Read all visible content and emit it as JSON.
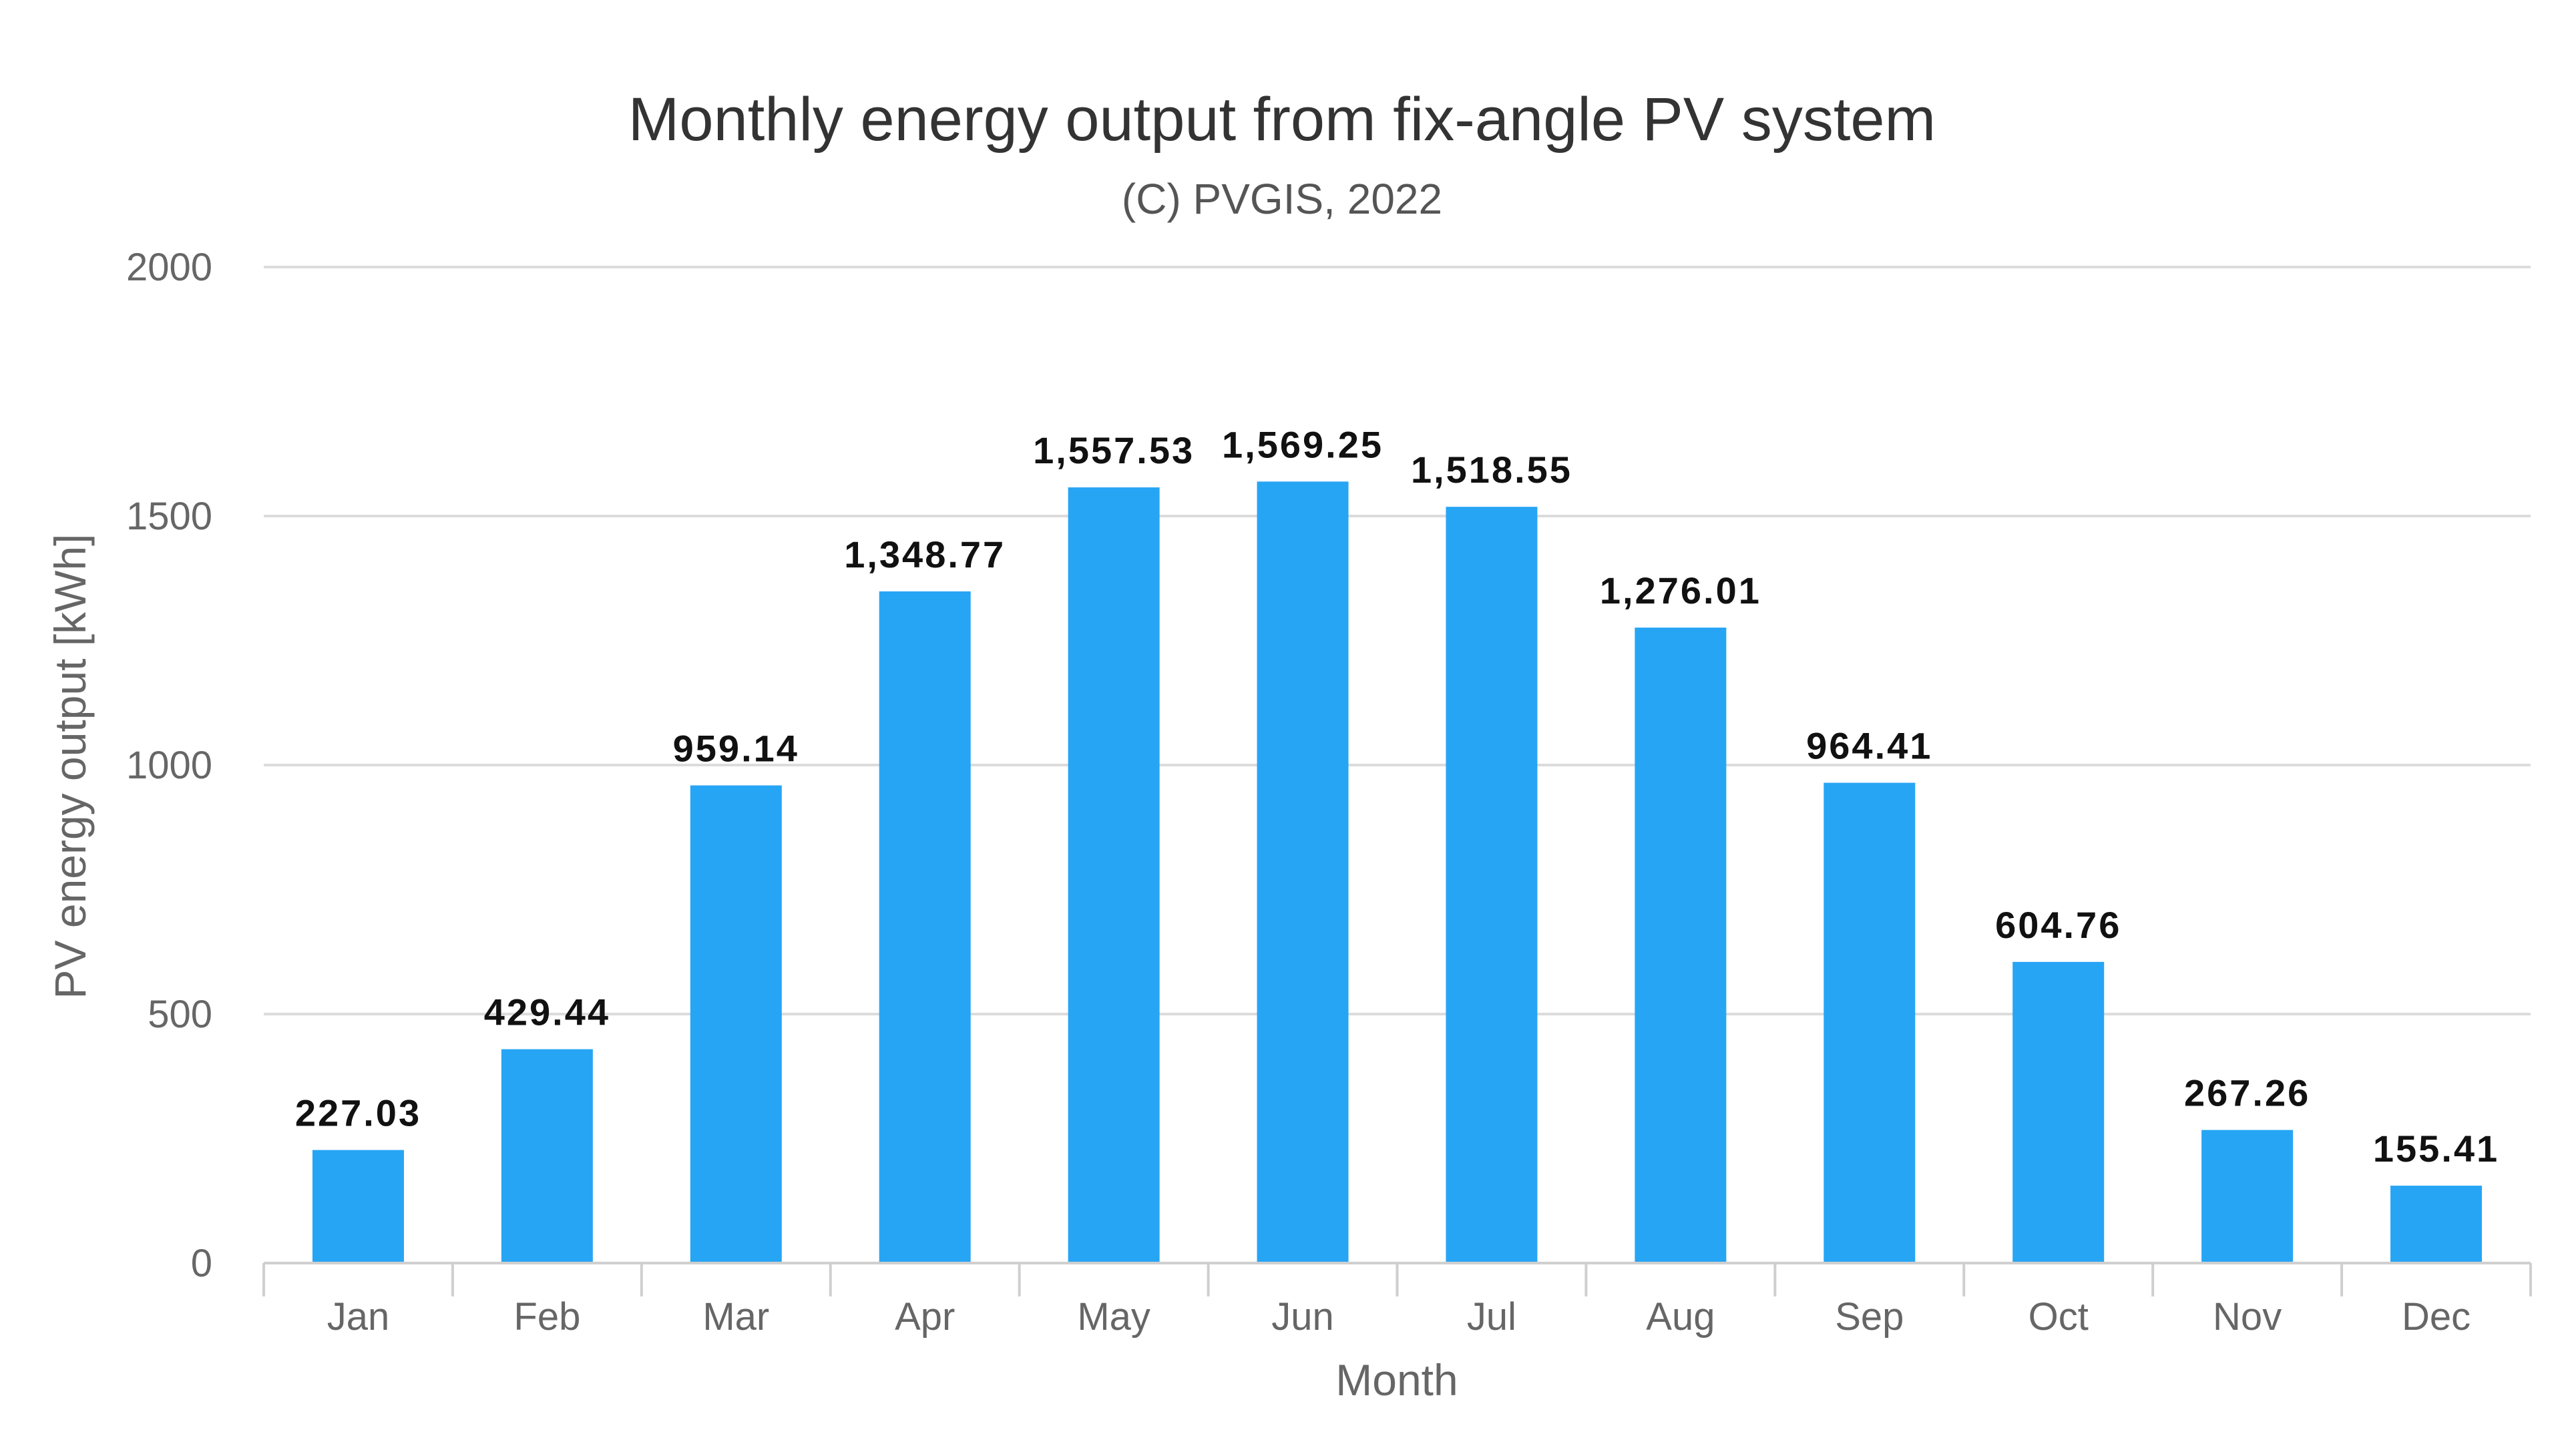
{
  "chart_data": {
    "type": "bar",
    "title": "Monthly energy output from fix-angle PV system",
    "subtitle": "(C) PVGIS, 2022",
    "xlabel": "Month",
    "ylabel": "PV energy output [kWh]",
    "ylim": [
      0,
      2000
    ],
    "yticks": [
      0,
      500,
      1000,
      1500,
      2000
    ],
    "grid": true,
    "categories": [
      "Jan",
      "Feb",
      "Mar",
      "Apr",
      "May",
      "Jun",
      "Jul",
      "Aug",
      "Sep",
      "Oct",
      "Nov",
      "Dec"
    ],
    "values": [
      227.03,
      429.44,
      959.14,
      1348.77,
      1557.53,
      1569.25,
      1518.55,
      1276.01,
      964.41,
      604.76,
      267.26,
      155.41
    ],
    "data_labels": [
      "227.03",
      "429.44",
      "959.14",
      "1,348.77",
      "1,557.53",
      "1,569.25",
      "1,518.55",
      "1,276.01",
      "964.41",
      "604.76",
      "267.26",
      "155.41"
    ],
    "bar_color": "#27a5f5"
  }
}
